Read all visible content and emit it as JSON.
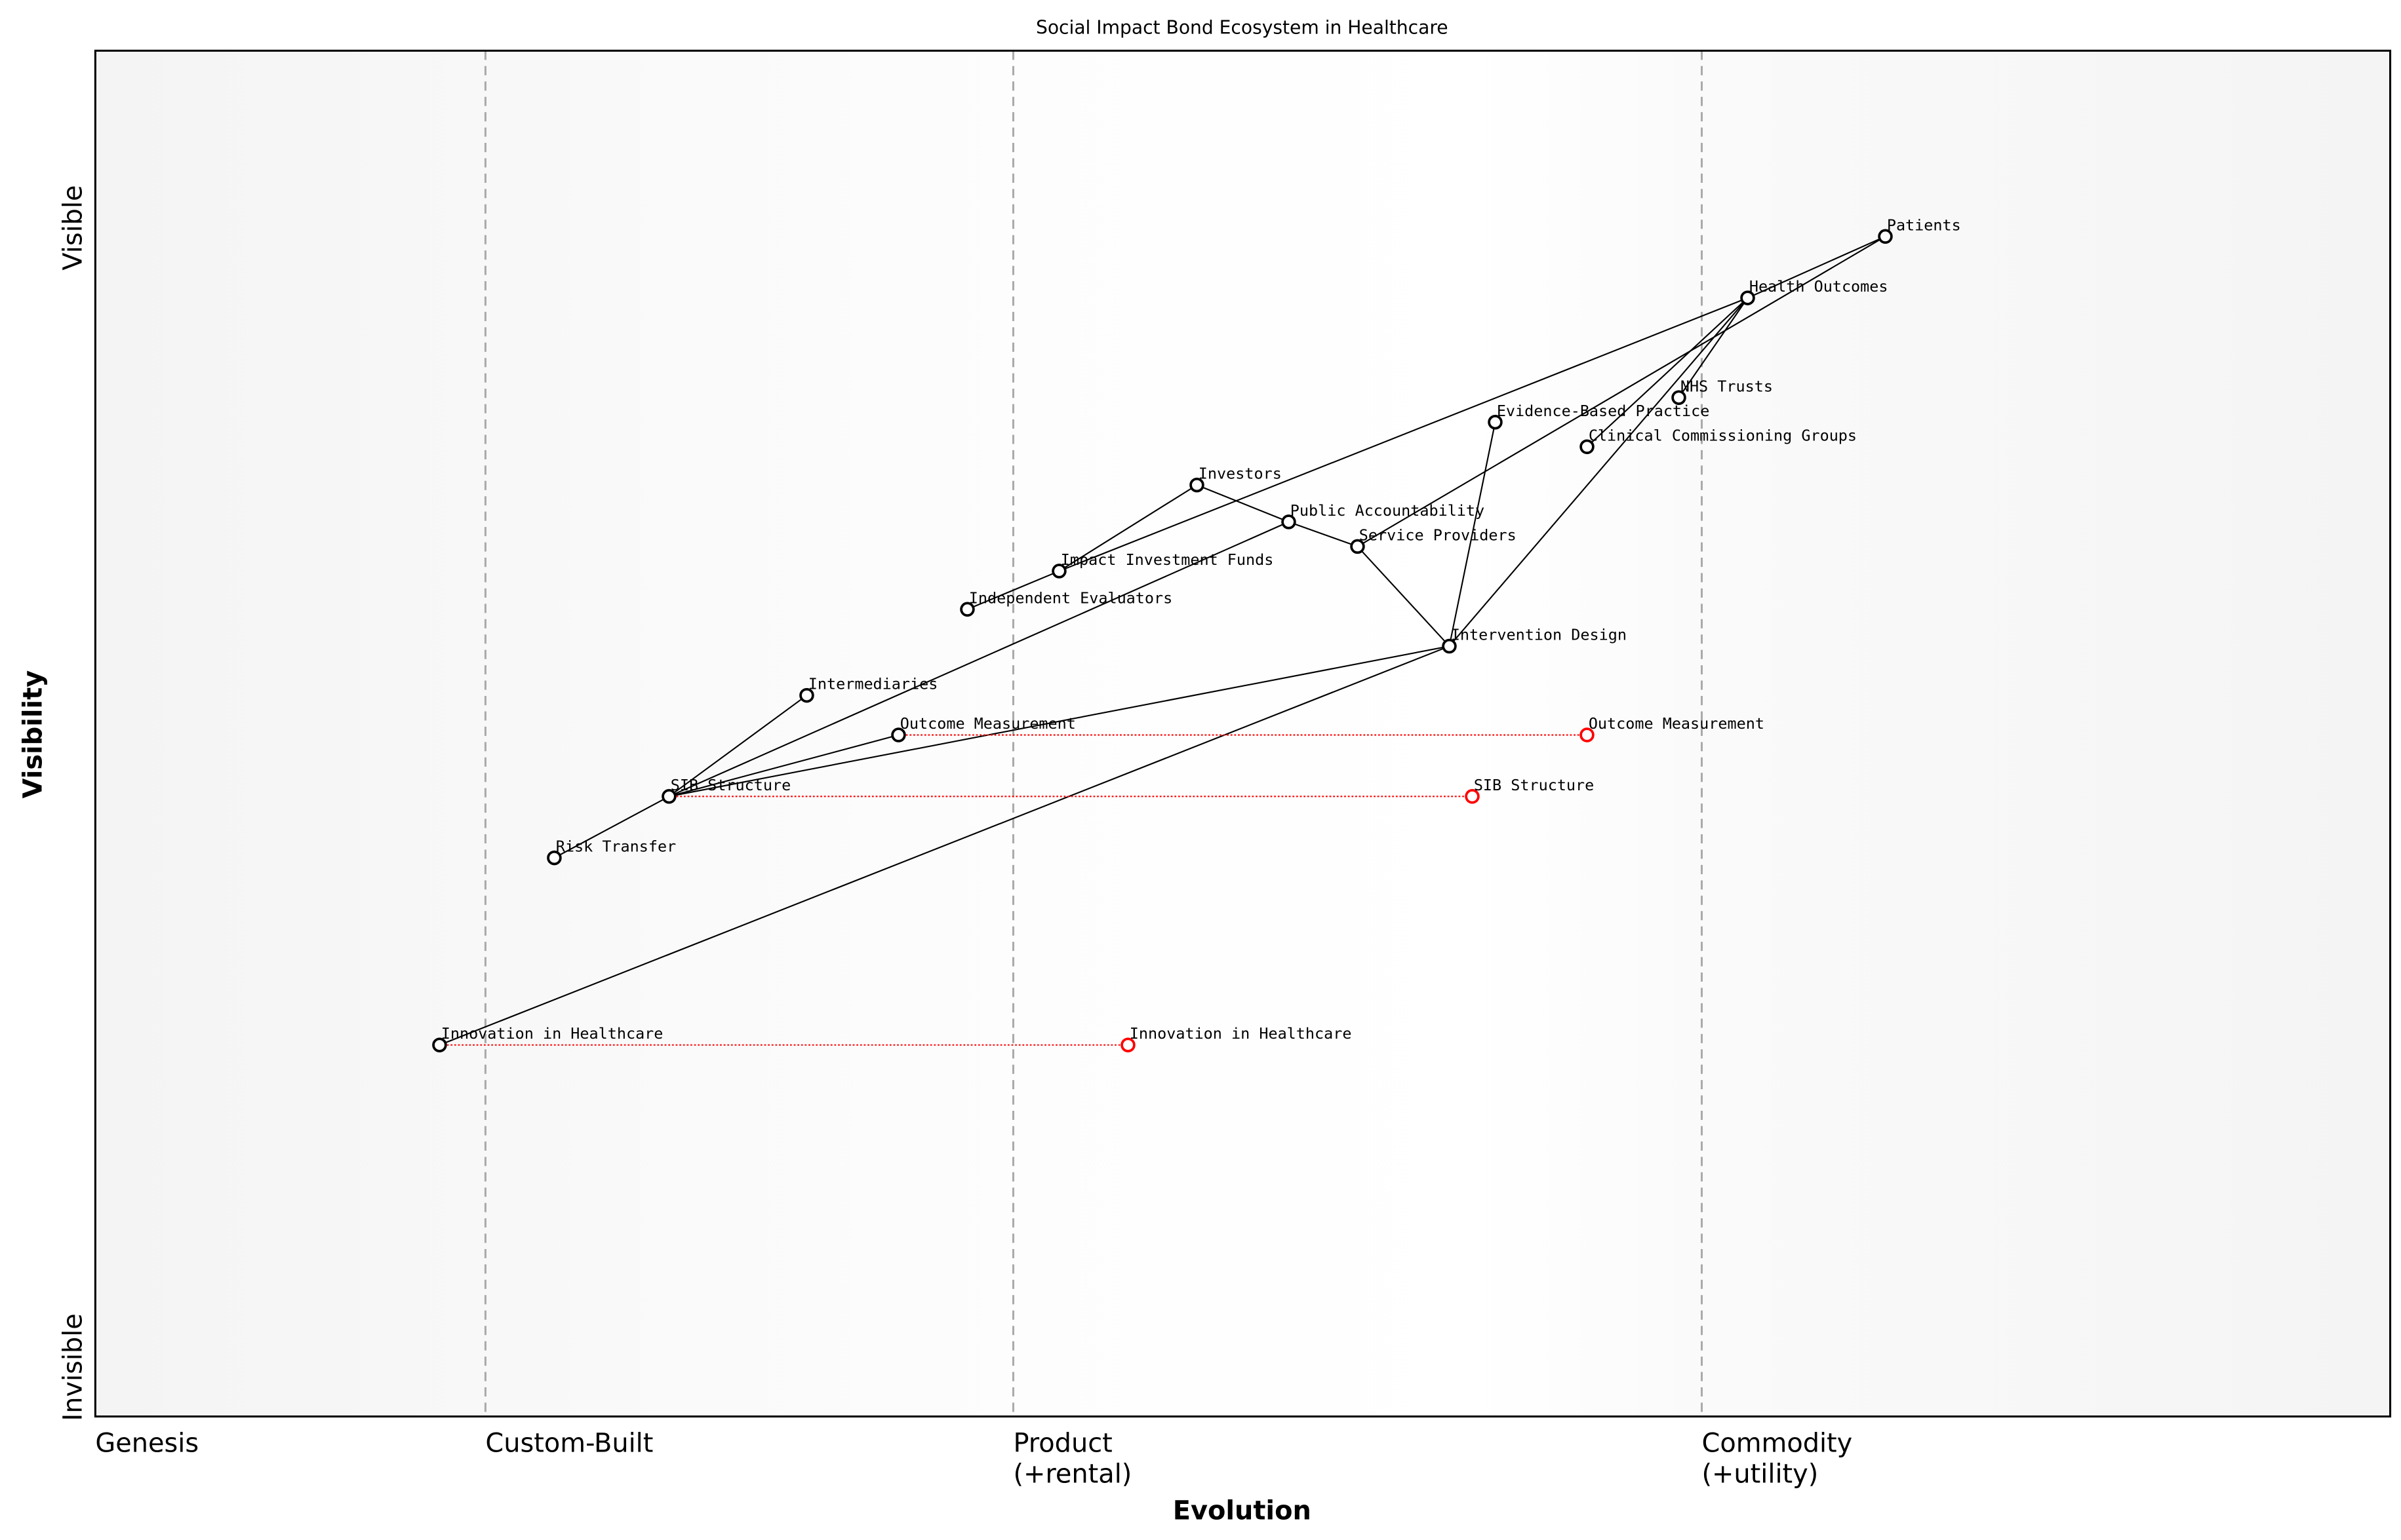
{
  "chart_data": {
    "type": "wardley-map",
    "title": "Social Impact Bond Ecosystem in Healthcare",
    "xlabel": "Evolution",
    "ylabel": "Visibility",
    "xlim": [
      0,
      1
    ],
    "ylim": [
      0,
      1
    ],
    "x_stages": [
      {
        "label": "Genesis",
        "x": 0.0
      },
      {
        "label": "Custom-Built",
        "x": 0.17
      },
      {
        "label": "Product\n(+rental)",
        "x": 0.4
      },
      {
        "label": "Commodity\n(+utility)",
        "x": 0.7
      }
    ],
    "y_labels": {
      "top": "Visible",
      "bottom": "Invisible"
    },
    "colors": {
      "component": "#000000",
      "evolution": "#ff0000",
      "stage_line": "#aaaaaa",
      "background_edge": "#f5f5f5",
      "background_center": "#ffffff"
    },
    "components": [
      {
        "name": "Patients",
        "evolution": 0.78,
        "visibility": 0.864
      },
      {
        "name": "Health Outcomes",
        "evolution": 0.72,
        "visibility": 0.819
      },
      {
        "name": "NHS Trusts",
        "evolution": 0.69,
        "visibility": 0.746
      },
      {
        "name": "Evidence-Based Practice",
        "evolution": 0.61,
        "visibility": 0.728
      },
      {
        "name": "Clinical Commissioning Groups",
        "evolution": 0.65,
        "visibility": 0.71
      },
      {
        "name": "Investors",
        "evolution": 0.48,
        "visibility": 0.682
      },
      {
        "name": "Public Accountability",
        "evolution": 0.52,
        "visibility": 0.655
      },
      {
        "name": "Service Providers",
        "evolution": 0.55,
        "visibility": 0.637
      },
      {
        "name": "Impact Investment Funds",
        "evolution": 0.42,
        "visibility": 0.619
      },
      {
        "name": "Independent Evaluators",
        "evolution": 0.38,
        "visibility": 0.591
      },
      {
        "name": "Intervention Design",
        "evolution": 0.59,
        "visibility": 0.564
      },
      {
        "name": "Intermediaries",
        "evolution": 0.31,
        "visibility": 0.528
      },
      {
        "name": "Outcome Measurement",
        "evolution": 0.35,
        "visibility": 0.499
      },
      {
        "name": "SIB Structure",
        "evolution": 0.25,
        "visibility": 0.454
      },
      {
        "name": "Risk Transfer",
        "evolution": 0.2,
        "visibility": 0.409
      },
      {
        "name": "Innovation in Healthcare",
        "evolution": 0.15,
        "visibility": 0.272
      }
    ],
    "links": [
      [
        "Patients",
        "Health Outcomes"
      ],
      [
        "Patients",
        "Service Providers"
      ],
      [
        "Health Outcomes",
        "Impact Investment Funds"
      ],
      [
        "Health Outcomes",
        "NHS Trusts"
      ],
      [
        "Health Outcomes",
        "Clinical Commissioning Groups"
      ],
      [
        "Health Outcomes",
        "Intervention Design"
      ],
      [
        "Investors",
        "Impact Investment Funds"
      ],
      [
        "Investors",
        "Public Accountability"
      ],
      [
        "Public Accountability",
        "Service Providers"
      ],
      [
        "Impact Investment Funds",
        "Independent Evaluators"
      ],
      [
        "Service Providers",
        "Intervention Design"
      ],
      [
        "Evidence-Based Practice",
        "Intervention Design"
      ],
      [
        "Intervention Design",
        "SIB Structure"
      ],
      [
        "Intervention Design",
        "Innovation in Healthcare"
      ],
      [
        "SIB Structure",
        "Intermediaries"
      ],
      [
        "SIB Structure",
        "Public Accountability"
      ],
      [
        "SIB Structure",
        "Outcome Measurement"
      ],
      [
        "SIB Structure",
        "Risk Transfer"
      ]
    ],
    "evolutions": [
      {
        "name": "Outcome Measurement",
        "from": 0.35,
        "to": 0.65
      },
      {
        "name": "SIB Structure",
        "from": 0.25,
        "to": 0.6
      },
      {
        "name": "Innovation in Healthcare",
        "from": 0.15,
        "to": 0.45
      }
    ]
  }
}
